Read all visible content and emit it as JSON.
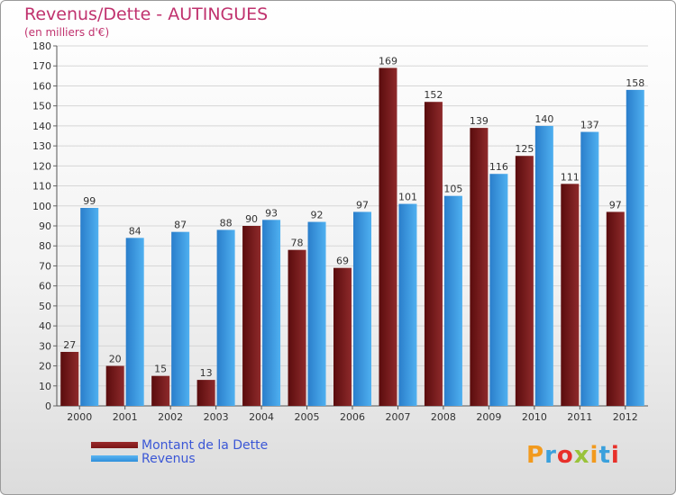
{
  "title": "Revenus/Dette - AUTINGUES",
  "subtitle": "(en milliers d'€)",
  "logo": {
    "letters": [
      "P",
      "r",
      "o",
      "x",
      "i",
      "t",
      "i"
    ],
    "colors": [
      "#f29a1e",
      "#3aa0dc",
      "#e8302a",
      "#9ac33a",
      "#f29a1e",
      "#3aa0dc",
      "#e8302a"
    ]
  },
  "colors": {
    "dette": "#7b1516",
    "revenus": "#2f8fdb",
    "title": "#c0326e",
    "legend_text": "#3b57d6"
  },
  "chart_data": {
    "type": "bar",
    "categories": [
      "2000",
      "2001",
      "2002",
      "2003",
      "2004",
      "2005",
      "2006",
      "2007",
      "2008",
      "2009",
      "2010",
      "2011",
      "2012"
    ],
    "series": [
      {
        "name": "Montant de la Dette",
        "values": [
          27,
          20,
          15,
          13,
          90,
          78,
          69,
          169,
          152,
          139,
          125,
          111,
          97
        ]
      },
      {
        "name": "Revenus",
        "values": [
          99,
          84,
          87,
          88,
          93,
          92,
          97,
          101,
          105,
          116,
          140,
          137,
          158
        ]
      }
    ],
    "ylim": [
      0,
      180
    ],
    "yticks": [
      0,
      10,
      20,
      30,
      40,
      50,
      60,
      70,
      80,
      90,
      100,
      110,
      120,
      130,
      140,
      150,
      160,
      170,
      180
    ],
    "grid": true,
    "legend_position": "bottom-left"
  }
}
